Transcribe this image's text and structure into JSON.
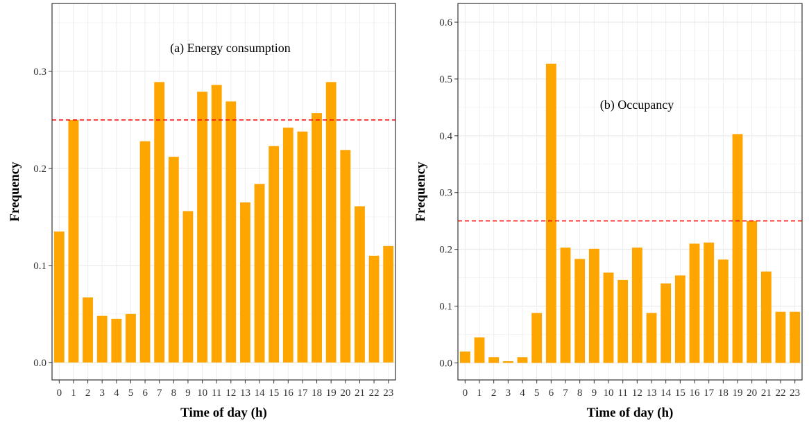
{
  "chart_data": [
    {
      "type": "bar",
      "annotation": "(a) Energy consumption",
      "xlabel": "Time of day (h)",
      "ylabel": "Frequency",
      "categories": [
        "0",
        "1",
        "2",
        "3",
        "4",
        "5",
        "6",
        "7",
        "8",
        "9",
        "10",
        "11",
        "12",
        "13",
        "14",
        "15",
        "16",
        "17",
        "18",
        "19",
        "20",
        "21",
        "22",
        "23"
      ],
      "values": [
        0.135,
        0.25,
        0.067,
        0.048,
        0.045,
        0.05,
        0.228,
        0.289,
        0.212,
        0.156,
        0.279,
        0.286,
        0.269,
        0.165,
        0.184,
        0.223,
        0.242,
        0.238,
        0.257,
        0.289,
        0.219,
        0.161,
        0.11,
        0.12
      ],
      "ylim": [
        -0.018,
        0.37
      ],
      "yticks": [
        "0.0",
        "0.1",
        "0.2",
        "0.3"
      ],
      "threshold": 0.25,
      "bar_color": "#FFA500",
      "threshold_color": "#FF0000",
      "grid": true
    },
    {
      "type": "bar",
      "annotation": "(b) Occupancy",
      "xlabel": "Time of day (h)",
      "ylabel": "Frequency",
      "categories": [
        "0",
        "1",
        "2",
        "3",
        "4",
        "5",
        "6",
        "7",
        "8",
        "9",
        "10",
        "11",
        "12",
        "13",
        "14",
        "15",
        "16",
        "17",
        "18",
        "19",
        "20",
        "21",
        "22",
        "23"
      ],
      "values": [
        0.02,
        0.045,
        0.01,
        0.003,
        0.01,
        0.088,
        0.527,
        0.203,
        0.183,
        0.201,
        0.159,
        0.146,
        0.203,
        0.088,
        0.14,
        0.154,
        0.21,
        0.212,
        0.182,
        0.403,
        0.25,
        0.161,
        0.09,
        0.09
      ],
      "ylim": [
        -0.03,
        0.633
      ],
      "yticks": [
        "0.0",
        "0.1",
        "0.2",
        "0.3",
        "0.4",
        "0.5",
        "0.6"
      ],
      "threshold": 0.25,
      "bar_color": "#FFA500",
      "threshold_color": "#FF0000",
      "grid": true
    }
  ]
}
